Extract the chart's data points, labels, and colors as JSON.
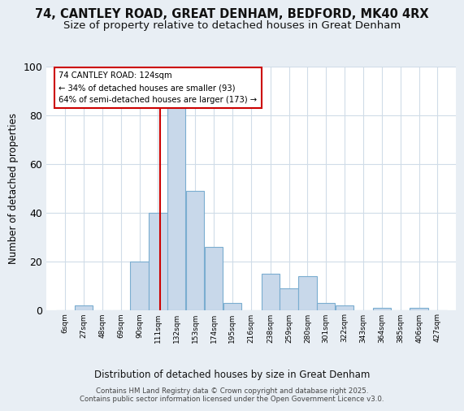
{
  "title": "74, CANTLEY ROAD, GREAT DENHAM, BEDFORD, MK40 4RX",
  "subtitle": "Size of property relative to detached houses in Great Denham",
  "xlabel": "Distribution of detached houses by size in Great Denham",
  "ylabel": "Number of detached properties",
  "bin_labels": [
    "6sqm",
    "27sqm",
    "48sqm",
    "69sqm",
    "90sqm",
    "111sqm",
    "132sqm",
    "153sqm",
    "174sqm",
    "195sqm",
    "216sqm",
    "238sqm",
    "259sqm",
    "280sqm",
    "301sqm",
    "322sqm",
    "343sqm",
    "364sqm",
    "385sqm",
    "406sqm",
    "427sqm"
  ],
  "bin_edges": [
    6,
    27,
    48,
    69,
    90,
    111,
    132,
    153,
    174,
    195,
    216,
    238,
    259,
    280,
    301,
    322,
    343,
    364,
    385,
    406,
    427
  ],
  "bar_heights": [
    0,
    2,
    0,
    0,
    20,
    40,
    84,
    49,
    26,
    3,
    0,
    15,
    9,
    14,
    3,
    2,
    0,
    1,
    0,
    1,
    0
  ],
  "bar_color": "#c8d8ea",
  "bar_edge_color": "#7aadd0",
  "vline_x": 124,
  "vline_color": "#cc0000",
  "ylim": [
    0,
    100
  ],
  "annotation_text": "74 CANTLEY ROAD: 124sqm\n← 34% of detached houses are smaller (93)\n64% of semi-detached houses are larger (173) →",
  "annotation_box_color": "#ffffff",
  "annotation_box_edge": "#cc0000",
  "footer1": "Contains HM Land Registry data © Crown copyright and database right 2025.",
  "footer2": "Contains public sector information licensed under the Open Government Licence v3.0.",
  "bg_color": "#e8eef4",
  "plot_bg_color": "#ffffff",
  "title_fontsize": 10.5,
  "subtitle_fontsize": 9.5,
  "grid_color": "#d0dce8"
}
